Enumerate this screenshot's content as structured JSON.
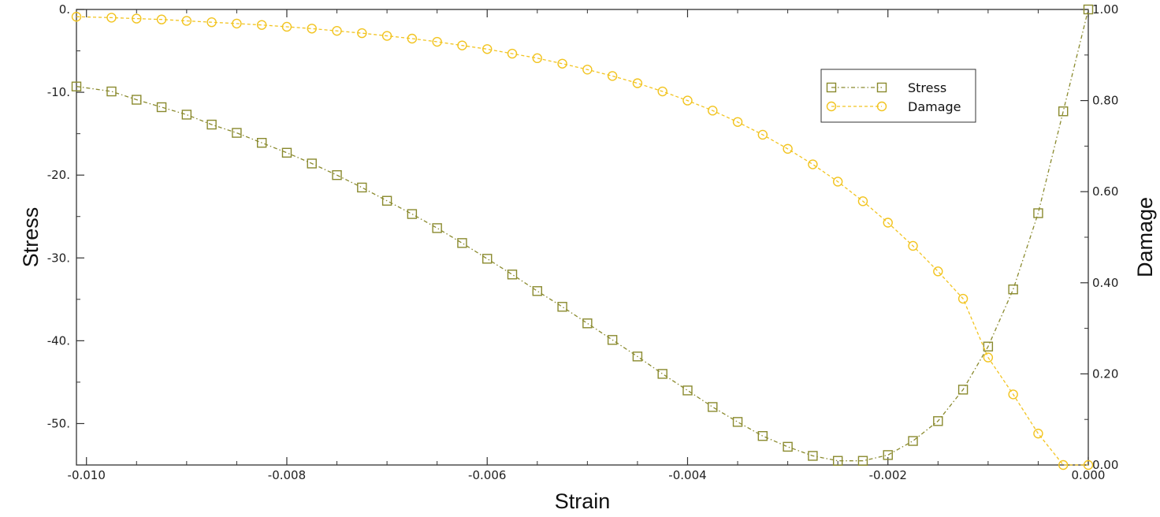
{
  "chart_data": {
    "type": "line",
    "title": "",
    "xlabel": "Strain",
    "ylabel": "Stress",
    "y2label": "Damage",
    "xlim": [
      -0.0101,
      0.0
    ],
    "ylim": [
      -55,
      0
    ],
    "y2lim": [
      0.0,
      1.0
    ],
    "x_ticks": [
      "-0.010",
      "-0.008",
      "-0.006",
      "-0.004",
      "-0.002",
      "0.000"
    ],
    "y_ticks": [
      "0.",
      "-10.",
      "-20.",
      "-30.",
      "-40.",
      "-50."
    ],
    "y2_ticks": [
      "1.00",
      "0.80",
      "0.60",
      "0.40",
      "0.20",
      "0.00"
    ],
    "legend_position": "top-right",
    "grid": false,
    "colors": {
      "stress": "#8a8a2e",
      "damage": "#f2c420",
      "axis": "#333333"
    },
    "series": [
      {
        "name": "Stress",
        "axis": "left",
        "marker": "square",
        "line": "dash-dot",
        "x": [
          -0.0101,
          -0.00975,
          -0.0095,
          -0.00925,
          -0.009,
          -0.00875,
          -0.0085,
          -0.00825,
          -0.008,
          -0.00775,
          -0.0075,
          -0.00725,
          -0.007,
          -0.00675,
          -0.0065,
          -0.00625,
          -0.006,
          -0.00575,
          -0.0055,
          -0.00525,
          -0.005,
          -0.00475,
          -0.0045,
          -0.00425,
          -0.004,
          -0.00375,
          -0.0035,
          -0.00325,
          -0.003,
          -0.00275,
          -0.0025,
          -0.00225,
          -0.002,
          -0.00175,
          -0.0015,
          -0.00125,
          -0.001,
          -0.00075,
          -0.0005,
          -0.00025,
          0.0
        ],
        "y": [
          -9.3,
          -9.9,
          -10.9,
          -11.8,
          -12.7,
          -13.9,
          -14.9,
          -16.1,
          -17.3,
          -18.6,
          -20.0,
          -21.5,
          -23.1,
          -24.7,
          -26.4,
          -28.2,
          -30.1,
          -32.0,
          -34.0,
          -35.9,
          -37.9,
          -39.9,
          -41.9,
          -44.0,
          -46.0,
          -48.0,
          -49.8,
          -51.5,
          -52.8,
          -53.9,
          -54.5,
          -54.5,
          -53.8,
          -52.1,
          -49.7,
          -45.9,
          -40.7,
          -33.8,
          -24.6,
          -12.3,
          0.0
        ]
      },
      {
        "name": "Damage",
        "axis": "right",
        "marker": "circle",
        "line": "dashed",
        "x": [
          -0.0101,
          -0.00975,
          -0.0095,
          -0.00925,
          -0.009,
          -0.00875,
          -0.0085,
          -0.00825,
          -0.008,
          -0.00775,
          -0.0075,
          -0.00725,
          -0.007,
          -0.00675,
          -0.0065,
          -0.00625,
          -0.006,
          -0.00575,
          -0.0055,
          -0.00525,
          -0.005,
          -0.00475,
          -0.0045,
          -0.00425,
          -0.004,
          -0.00375,
          -0.0035,
          -0.00325,
          -0.003,
          -0.00275,
          -0.0025,
          -0.00225,
          -0.002,
          -0.00175,
          -0.0015,
          -0.00125,
          -0.001,
          -0.00075,
          -0.0005,
          -0.00025,
          0.0
        ],
        "y": [
          0.984,
          0.982,
          0.98,
          0.978,
          0.975,
          0.972,
          0.969,
          0.966,
          0.962,
          0.958,
          0.953,
          0.948,
          0.942,
          0.936,
          0.929,
          0.921,
          0.913,
          0.903,
          0.893,
          0.881,
          0.868,
          0.854,
          0.838,
          0.82,
          0.8,
          0.778,
          0.753,
          0.725,
          0.694,
          0.66,
          0.622,
          0.579,
          0.532,
          0.481,
          0.425,
          0.365,
          0.236,
          0.155,
          0.069,
          0.0,
          0.0
        ]
      }
    ]
  }
}
